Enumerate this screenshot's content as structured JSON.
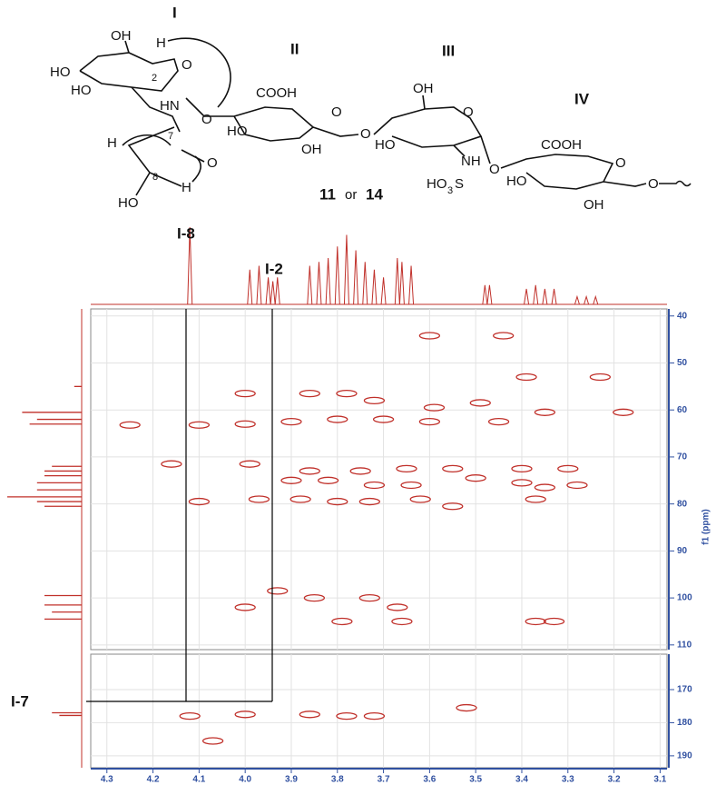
{
  "structure": {
    "residues": [
      "I",
      "II",
      "III",
      "IV"
    ],
    "compound": [
      "11",
      "or",
      "14"
    ],
    "atoms": [
      "OH",
      "HO",
      "HO",
      "H",
      "O",
      "2",
      "HN",
      "O",
      "H",
      "7",
      "O",
      "8",
      "H",
      "HO",
      "COOH",
      "HO",
      "OH",
      "O",
      "O",
      "OH",
      "HO",
      "O",
      "NH",
      "HO",
      "3",
      "S",
      "O",
      "COOH",
      "HO",
      "OH",
      "O",
      "O"
    ]
  },
  "annotations": [
    "I-8",
    "I-2",
    "I-7"
  ],
  "chart_data": {
    "type": "scatter",
    "ylabel": "f1 (ppm)",
    "xlim": [
      4.335,
      3.085
    ],
    "xticks": [
      4.3,
      4.2,
      4.1,
      {
        "value": 4,
        "label": "4.0"
      },
      3.9,
      3.8,
      3.7,
      3.6,
      3.5,
      3.4,
      3.3,
      3.2,
      3.1
    ],
    "panels": [
      {
        "ylim": [
          38.5,
          111
        ],
        "yticks": [
          40,
          50,
          60,
          70,
          80,
          90,
          100,
          110
        ]
      },
      {
        "ylim": [
          159.3,
          193.6
        ],
        "yticks": [
          170,
          180,
          190
        ]
      }
    ],
    "grid": true,
    "color": "#c0302a",
    "x": [
      3.6,
      3.44,
      3.39,
      3.23,
      4.0,
      3.86,
      3.78,
      3.72,
      3.59,
      3.49,
      4.25,
      4.1,
      4.0,
      3.9,
      3.8,
      3.7,
      3.6,
      3.45,
      3.35,
      3.18,
      4.16,
      3.99,
      3.86,
      3.75,
      3.65,
      3.55,
      3.4,
      3.3,
      3.9,
      3.82,
      3.72,
      3.64,
      3.5,
      3.4,
      3.35,
      3.28,
      4.1,
      3.97,
      3.88,
      3.8,
      3.73,
      3.62,
      3.55,
      3.37,
      4.0,
      3.93,
      3.85,
      3.73,
      3.67,
      3.79,
      3.66,
      3.37,
      3.33,
      4.12,
      4.0,
      3.86,
      3.78,
      3.72,
      3.52,
      4.07
    ],
    "y": [
      44.2,
      44.2,
      53,
      53,
      56.5,
      56.5,
      56.5,
      58,
      59.5,
      58.5,
      63.2,
      63.2,
      63,
      62.5,
      62,
      62,
      62.5,
      62.5,
      60.5,
      60.5,
      71.5,
      71.5,
      73,
      73,
      72.5,
      72.5,
      72.5,
      72.5,
      75,
      75,
      76,
      76,
      74.5,
      75.5,
      76.5,
      76,
      79.5,
      79,
      79,
      79.5,
      79.5,
      79,
      80.5,
      79,
      102,
      98.5,
      100,
      100,
      102,
      105,
      105,
      105,
      105,
      178,
      177.5,
      177.5,
      178,
      178,
      175.5,
      185.5
    ],
    "proton_trace": {
      "x": [
        4.12,
        3.99,
        3.97,
        3.95,
        3.94,
        3.93,
        3.86,
        3.84,
        3.82,
        3.8,
        3.78,
        3.76,
        3.74,
        3.72,
        3.7,
        3.67,
        3.66,
        3.64,
        3.48,
        3.47,
        3.39,
        3.37,
        3.35,
        3.33,
        3.28,
        3.26,
        3.24
      ],
      "values": [
        1.0,
        0.45,
        0.5,
        0.35,
        0.3,
        0.35,
        0.5,
        0.55,
        0.6,
        0.75,
        0.9,
        0.7,
        0.55,
        0.45,
        0.35,
        0.6,
        0.55,
        0.5,
        0.25,
        0.25,
        0.2,
        0.25,
        0.2,
        0.2,
        0.1,
        0.1,
        0.1
      ]
    },
    "carbon_trace": {
      "y": [
        55,
        60.5,
        62,
        63,
        72,
        73,
        74,
        75.5,
        77,
        78.5,
        79.5,
        80.5,
        99.5,
        101.5,
        103,
        104.5,
        177,
        177.8
      ],
      "values": [
        0.1,
        0.8,
        0.6,
        0.7,
        0.4,
        0.5,
        0.5,
        0.6,
        0.6,
        1.0,
        0.6,
        0.5,
        0.5,
        0.5,
        0.4,
        0.5,
        0.4,
        0.3
      ]
    }
  }
}
